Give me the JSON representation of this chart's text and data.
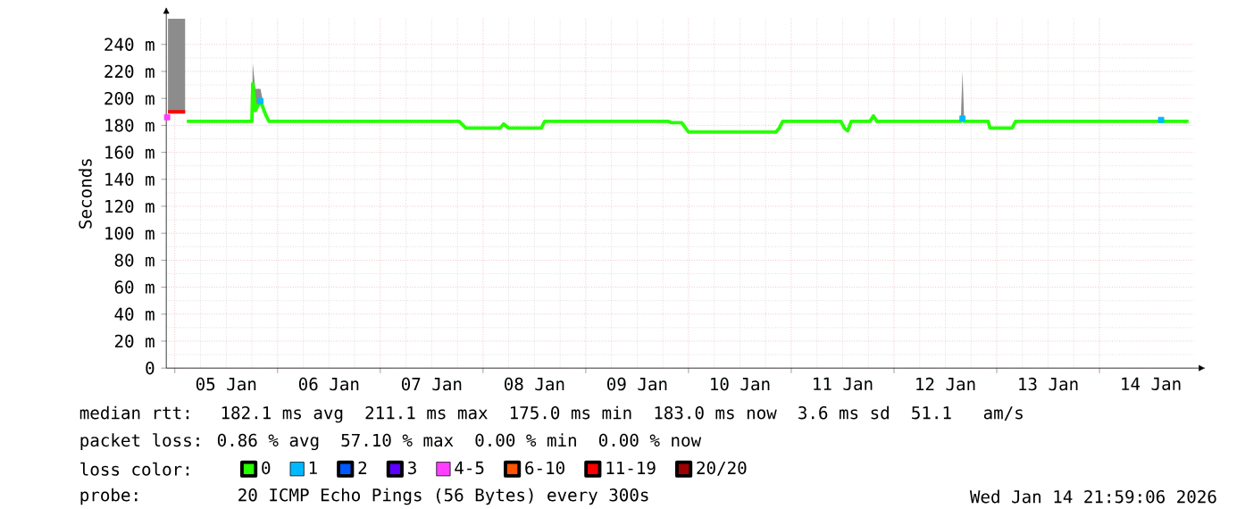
{
  "chart_data": {
    "type": "line",
    "ylabel": "Seconds",
    "xlim": [
      "2026-01-04T22:00",
      "2026-01-14T22:00"
    ],
    "xticks": [
      {
        "value": "2026-01-05T00:00",
        "label": null
      },
      {
        "value": "2026-01-05T12:00",
        "label": "05 Jan"
      },
      {
        "value": "2026-01-06T00:00",
        "label": null
      },
      {
        "value": "2026-01-06T12:00",
        "label": "06 Jan"
      },
      {
        "value": "2026-01-07T00:00",
        "label": null
      },
      {
        "value": "2026-01-07T12:00",
        "label": "07 Jan"
      },
      {
        "value": "2026-01-08T00:00",
        "label": null
      },
      {
        "value": "2026-01-08T12:00",
        "label": "08 Jan"
      },
      {
        "value": "2026-01-09T00:00",
        "label": null
      },
      {
        "value": "2026-01-09T12:00",
        "label": "09 Jan"
      },
      {
        "value": "2026-01-10T00:00",
        "label": null
      },
      {
        "value": "2026-01-10T12:00",
        "label": "10 Jan"
      },
      {
        "value": "2026-01-11T00:00",
        "label": null
      },
      {
        "value": "2026-01-11T12:00",
        "label": "11 Jan"
      },
      {
        "value": "2026-01-12T00:00",
        "label": null
      },
      {
        "value": "2026-01-12T12:00",
        "label": "12 Jan"
      },
      {
        "value": "2026-01-13T00:00",
        "label": null
      },
      {
        "value": "2026-01-13T12:00",
        "label": "13 Jan"
      },
      {
        "value": "2026-01-14T00:00",
        "label": null
      },
      {
        "value": "2026-01-14T12:00",
        "label": "14 Jan"
      }
    ],
    "ylim": [
      0,
      259
    ],
    "yticks": [
      0,
      {
        "value": 20,
        "label": "20 m"
      },
      {
        "value": 40,
        "label": "40 m"
      },
      {
        "value": 60,
        "label": "60 m"
      },
      {
        "value": 80,
        "label": "80 m"
      },
      {
        "value": 100,
        "label": "100 m"
      },
      {
        "value": 120,
        "label": "120 m"
      },
      {
        "value": 140,
        "label": "140 m"
      },
      {
        "value": 160,
        "label": "160 m"
      },
      {
        "value": 180,
        "label": "180 m"
      },
      {
        "value": 200,
        "label": "200 m"
      },
      {
        "value": 220,
        "label": "220 m"
      },
      {
        "value": 240,
        "label": "240 m"
      }
    ],
    "grid": true,
    "legend": "bottom",
    "series": [
      {
        "name": "0",
        "color": "#26ff00",
        "x": [
          "2026-01-05T02:48",
          "2026-01-05T18:00",
          "2026-01-05T18:12",
          "2026-01-05T18:48",
          "2026-01-05T20:00",
          "2026-01-05T21:12",
          "2026-01-05T22:00",
          "2026-01-07T18:24",
          "2026-01-07T20:00",
          "2026-01-08T04:00",
          "2026-01-08T04:48",
          "2026-01-08T06:00",
          "2026-01-08T13:36",
          "2026-01-08T14:24",
          "2026-01-09T19:12",
          "2026-01-09T20:00",
          "2026-01-09T22:24",
          "2026-01-10T00:00",
          "2026-01-10T20:24",
          "2026-01-10T21:12",
          "2026-01-10T22:00",
          "2026-01-11T11:36",
          "2026-01-11T12:24",
          "2026-01-11T13:12",
          "2026-01-11T14:00",
          "2026-01-11T18:24",
          "2026-01-11T19:12",
          "2026-01-11T20:00",
          "2026-01-12T15:36",
          "2026-01-12T16:00",
          "2026-01-12T16:24",
          "2026-01-12T22:00",
          "2026-01-12T22:24",
          "2026-01-13T03:36",
          "2026-01-13T04:24",
          "2026-01-14T20:48"
        ],
        "values": [
          183,
          183,
          211,
          191,
          198,
          188,
          183,
          183,
          178,
          178,
          181,
          178,
          178,
          183,
          183,
          182,
          182,
          175,
          175,
          178,
          183,
          183,
          178,
          176,
          183,
          183,
          187,
          183,
          183,
          185,
          183,
          183,
          178,
          178,
          183,
          183
        ],
        "lower": [
          183,
          183,
          211,
          191,
          198,
          188,
          183,
          183,
          178,
          178,
          181,
          178,
          178,
          183,
          183,
          182,
          182,
          175,
          175,
          178,
          183,
          183,
          178,
          176,
          183,
          183,
          187,
          183,
          183,
          185,
          183,
          183,
          178,
          178,
          183,
          183
        ],
        "upper": [
          183,
          183,
          226,
          207,
          207,
          188,
          183,
          183,
          178,
          178,
          181,
          178,
          178,
          183,
          183,
          182,
          182,
          175,
          175,
          178,
          183,
          183,
          178,
          176,
          183,
          183,
          187,
          183,
          183,
          220,
          183,
          183,
          178,
          178,
          183,
          183
        ]
      },
      {
        "name": "1",
        "color": "#00b8ff",
        "type": "scatter",
        "marker": "square",
        "x": [
          "2026-01-05T20:00",
          "2026-01-12T16:00",
          "2026-01-14T14:24"
        ],
        "values": [
          198,
          185,
          184
        ]
      },
      {
        "name": "2",
        "color": "#0059ff"
      },
      {
        "name": "3",
        "color": "#5e00ff"
      },
      {
        "name": "4-5",
        "color": "#ff3eff",
        "type": "scatter",
        "marker": "square",
        "x": [
          "2026-01-04T22:12"
        ],
        "values": [
          186
        ]
      },
      {
        "name": "6-10",
        "color": "#ff5500"
      },
      {
        "name": "11-19",
        "color": "#ff0000",
        "x": [
          "2026-01-04T22:24",
          "2026-01-05T02:24"
        ],
        "values": [
          190,
          190
        ],
        "lower": [
          190,
          190
        ],
        "upper": [
          259,
          259
        ]
      },
      {
        "name": "20/20",
        "color": "#a10000"
      }
    ],
    "annotations": [
      "median rtt:  182.1 ms avg  211.1 ms max  175.0 ms min  183.0 ms now  3.6 ms sd  51.1   am/s",
      "packet loss: 0.86 % avg  57.10 % max  0.00 % min  0.00 % now",
      "loss color:",
      "probe:       20 ICMP Echo Pings (56 Bytes) every 300s",
      "Wed Jan 14 21:59:06 2026"
    ]
  }
}
